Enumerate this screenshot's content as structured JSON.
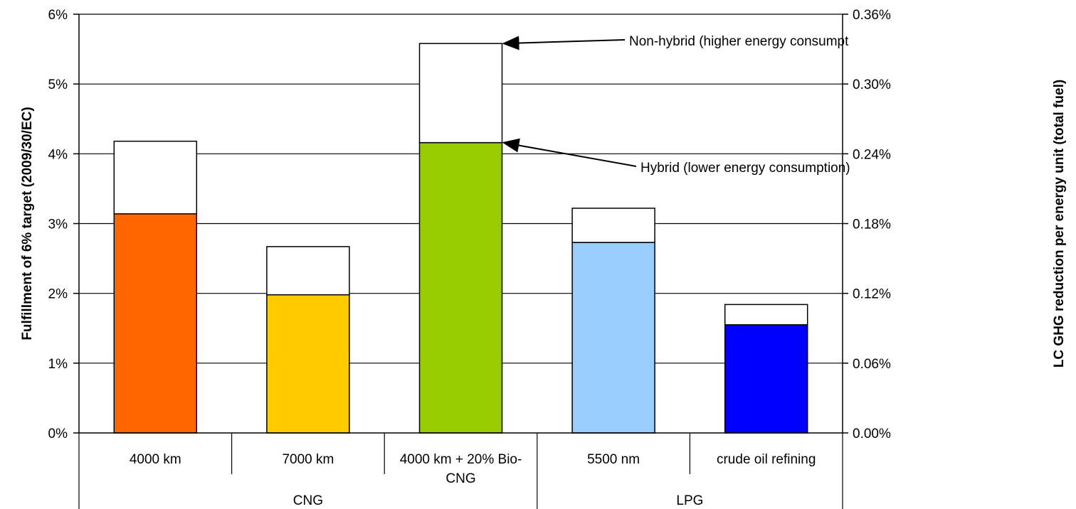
{
  "chart_data": {
    "type": "bar",
    "stacked": true,
    "title": "",
    "ylabel": "Fulfillment of 6% target (2009/30/EC)",
    "ylabel_right": "LC GHG reduction per energy unit (total fuel)",
    "ylim": [
      0,
      6
    ],
    "ylim_right": [
      0,
      0.36
    ],
    "y_ticks": [
      "0%",
      "1%",
      "2%",
      "3%",
      "4%",
      "5%",
      "6%"
    ],
    "y_ticks_right": [
      "0.00%",
      "0.06%",
      "0.12%",
      "0.18%",
      "0.24%",
      "0.30%",
      "0.36%"
    ],
    "grid": true,
    "categories": [
      {
        "label_lines": [
          "4000 km"
        ],
        "group": "CNG"
      },
      {
        "label_lines": [
          "7000 km"
        ],
        "group": "CNG"
      },
      {
        "label_lines": [
          "4000 km + 20% Bio-",
          "CNG"
        ],
        "group": "CNG"
      },
      {
        "label_lines": [
          "5500 nm"
        ],
        "group": "LPG"
      },
      {
        "label_lines": [
          "crude oil refining"
        ],
        "group": "LPG"
      }
    ],
    "groups": [
      {
        "label": "CNG",
        "span": 3
      },
      {
        "label": "LPG",
        "span": 2
      }
    ],
    "series": [
      {
        "values": [
          3.14,
          1.98,
          4.16,
          2.73,
          1.55
        ]
      },
      {
        "values": [
          1.04,
          0.69,
          1.42,
          0.49,
          0.29
        ]
      }
    ],
    "bar_colors": [
      "#ff6600",
      "#ffcc00",
      "#99cc00",
      "#99ccff",
      "#0000ff"
    ],
    "upper_color": "#ffffff",
    "annotations": [
      {
        "text": "Non-hybrid (higher energy consumpt",
        "target_category": 2,
        "target_value": 5.58
      },
      {
        "text": "Hybrid (lower energy consumption)",
        "target_category": 2,
        "target_value": 4.16
      }
    ]
  }
}
